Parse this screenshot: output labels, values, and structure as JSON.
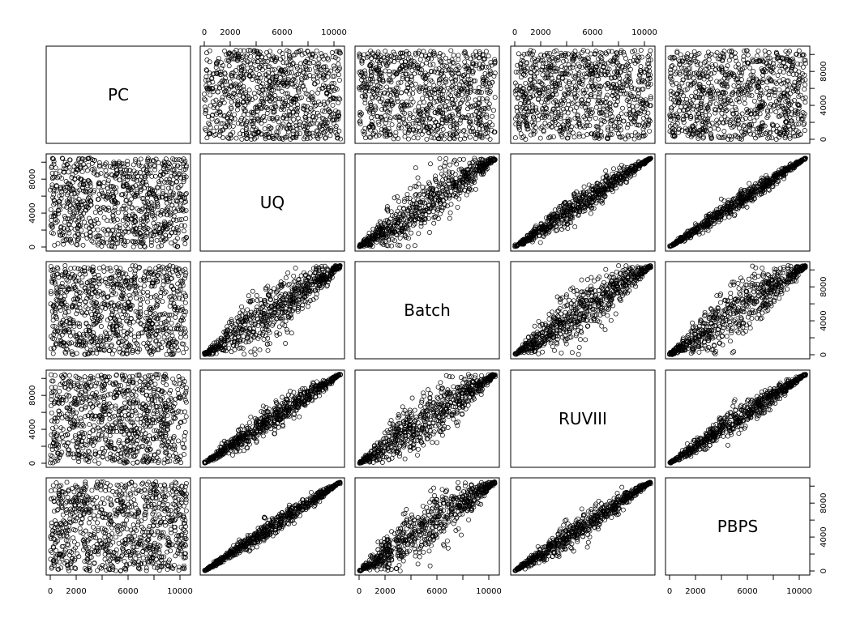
{
  "chart_data": {
    "type": "scatter-matrix",
    "variables": [
      "PC",
      "UQ",
      "Batch",
      "RUVIII",
      "PBPS"
    ],
    "axis_range": [
      0,
      10500
    ],
    "ticks": [
      0,
      2000,
      4000,
      6000,
      8000,
      10000
    ],
    "tick_labels": [
      "0",
      "2000",
      "6000",
      "10000"
    ],
    "y_tick_labels": [
      "0",
      "4000",
      "8000"
    ],
    "pairs": [
      {
        "x": "UQ",
        "y": "PC",
        "correlation": 0.0
      },
      {
        "x": "Batch",
        "y": "PC",
        "correlation": 0.0
      },
      {
        "x": "RUVIII",
        "y": "PC",
        "correlation": 0.0
      },
      {
        "x": "PBPS",
        "y": "PC",
        "correlation": 0.0
      },
      {
        "x": "Batch",
        "y": "UQ",
        "correlation": 0.78
      },
      {
        "x": "RUVIII",
        "y": "UQ",
        "correlation": 0.9
      },
      {
        "x": "PBPS",
        "y": "UQ",
        "correlation": 0.93
      },
      {
        "x": "RUVIII",
        "y": "Batch",
        "correlation": 0.8
      },
      {
        "x": "PBPS",
        "y": "Batch",
        "correlation": 0.78
      },
      {
        "x": "PBPS",
        "y": "RUVIII",
        "correlation": 0.9
      }
    ],
    "grid": false,
    "point_style": "open-circle",
    "color": "#000000"
  }
}
